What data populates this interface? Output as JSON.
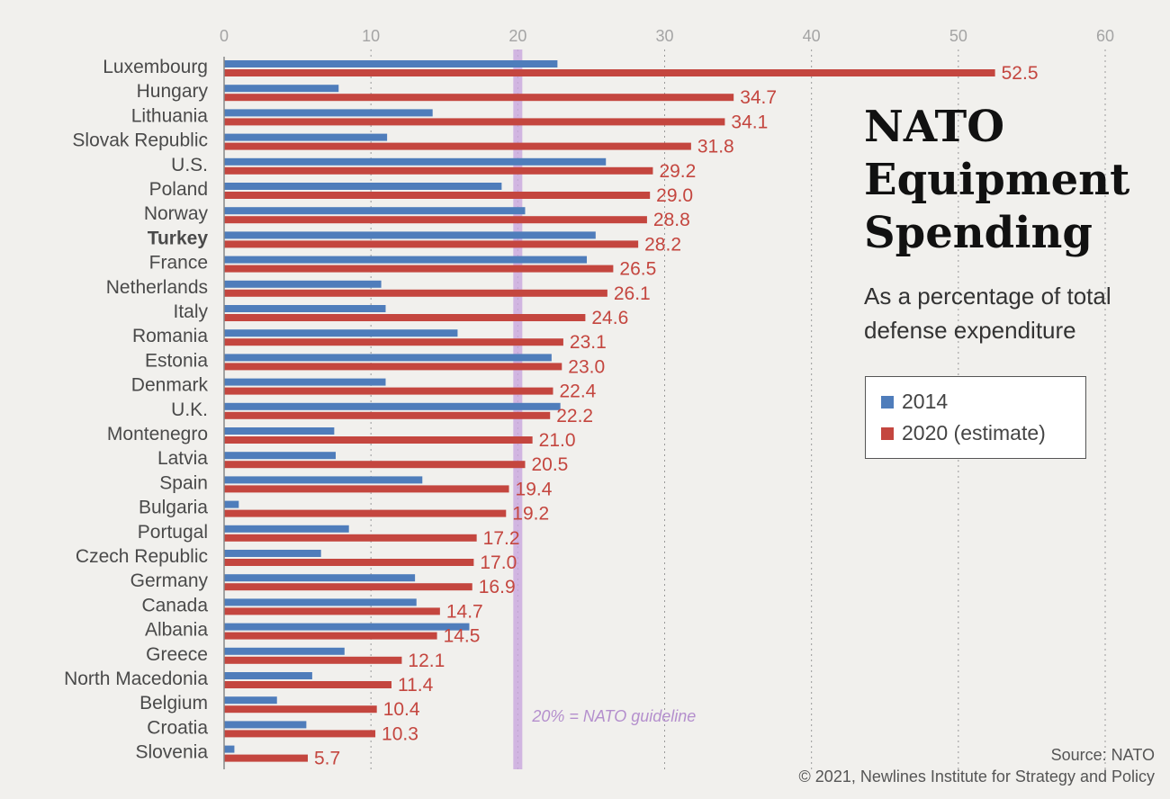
{
  "title": "NATO Equipment Spending",
  "subtitle": "As a percentage of total defense expenditure",
  "legend": {
    "series_2014": "2014",
    "series_2020": "2020 (estimate)"
  },
  "guideline_label": "20% = NATO guideline",
  "source": "Source: NATO",
  "copyright": "© 2021, Newlines Institute for Strategy and Policy",
  "colors": {
    "series_2014": "#4f7dbb",
    "series_2020": "#c4463f",
    "guideline": "#c9a6dd",
    "background": "#f1f0ed"
  },
  "chart_data": {
    "type": "bar",
    "orientation": "horizontal",
    "title": "NATO Equipment Spending",
    "subtitle": "As a percentage of total defense expenditure",
    "xlim": [
      0,
      60
    ],
    "xticks": [
      0,
      10,
      20,
      30,
      40,
      50,
      60
    ],
    "gridlines": true,
    "reference_line": {
      "value": 20,
      "label": "20% = NATO guideline"
    },
    "highlighted_category": "Turkey",
    "categories": [
      "Luxembourg",
      "Hungary",
      "Lithuania",
      "Slovak Republic",
      "U.S.",
      "Poland",
      "Norway",
      "Turkey",
      "France",
      "Netherlands",
      "Italy",
      "Romania",
      "Estonia",
      "Denmark",
      "U.K.",
      "Montenegro",
      "Latvia",
      "Spain",
      "Bulgaria",
      "Portugal",
      "Czech Republic",
      "Germany",
      "Canada",
      "Albania",
      "Greece",
      "North Macedonia",
      "Belgium",
      "Croatia",
      "Slovenia"
    ],
    "series": [
      {
        "name": "2014",
        "color": "#4f7dbb",
        "values": [
          22.7,
          7.8,
          14.2,
          11.1,
          26.0,
          18.9,
          20.5,
          25.3,
          24.7,
          10.7,
          11.0,
          15.9,
          22.3,
          11.0,
          22.9,
          7.5,
          7.6,
          13.5,
          1.0,
          8.5,
          6.6,
          13.0,
          13.1,
          16.7,
          8.2,
          6.0,
          3.6,
          5.6,
          0.7
        ]
      },
      {
        "name": "2020 (estimate)",
        "color": "#c4463f",
        "values": [
          52.5,
          34.7,
          34.1,
          31.8,
          29.2,
          29.0,
          28.8,
          28.2,
          26.5,
          26.1,
          24.6,
          23.1,
          23.0,
          22.4,
          22.2,
          21.0,
          20.5,
          19.4,
          19.2,
          17.2,
          17.0,
          16.9,
          14.7,
          14.5,
          12.1,
          11.4,
          10.4,
          10.3,
          5.7
        ],
        "value_labels": [
          "52.5",
          "34.7",
          "34.1",
          "31.8",
          "29.2",
          "29.0",
          "28.8",
          "28.2",
          "26.5",
          "26.1",
          "24.6",
          "23.1",
          "23.0",
          "22.4",
          "22.2",
          "21.0",
          "20.5",
          "19.4",
          "19.2",
          "17.2",
          "17.0",
          "16.9",
          "14.7",
          "14.5",
          "12.1",
          "11.4",
          "10.4",
          "10.3",
          "5.7"
        ]
      }
    ]
  }
}
